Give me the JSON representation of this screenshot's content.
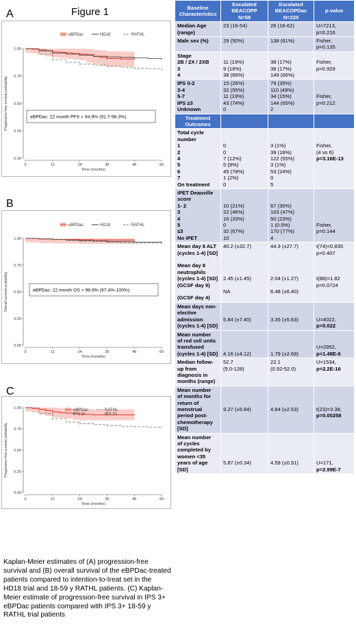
{
  "figure_title": "Figure 1",
  "panels": [
    {
      "letter": "A",
      "ylabel": "Progression-free survival probability",
      "xlabel": "Time (months)",
      "legend": [
        "eBPDac",
        "HD18",
        "RATHL"
      ],
      "annotation": "eBPDac: 22 month PFS = 94.9% (91.7-98.3%)",
      "yticks": [
        "1.00",
        "0.75",
        "0.50",
        "0.25",
        "0.00"
      ],
      "xticks": [
        "0",
        "12",
        "24",
        "36",
        "48",
        "60"
      ]
    },
    {
      "letter": "B",
      "ylabel": "Overall survival probability",
      "xlabel": "Time (months)",
      "legend": [
        "eBPDac",
        "HD18",
        "RATHL"
      ],
      "annotation": "eBPDac: 22 month OS = 98.9% (97.4%-100%)",
      "yticks": [
        "1.00",
        "0.75",
        "0.50",
        "0.25",
        "0.00"
      ],
      "xticks": [
        "0",
        "12",
        "24",
        "36",
        "48",
        "60"
      ]
    },
    {
      "letter": "C",
      "ylabel": "Progression-free survival probability",
      "xlabel": "Time (months)",
      "legend": [
        "eBPDac\nIPS 3+",
        "RATHL\nIPS 3+"
      ],
      "yticks": [
        "1.00",
        "0.75",
        "0.50",
        "0.25",
        "0.00"
      ],
      "xticks": [
        "0",
        "12",
        "24",
        "36",
        "48",
        "60"
      ]
    }
  ],
  "chart_data": [
    {
      "type": "line",
      "title": "",
      "xlabel": "Time (months)",
      "ylabel": "Progression-free survival probability",
      "xlim": [
        0,
        60
      ],
      "ylim": [
        0,
        1
      ],
      "series": [
        {
          "name": "eBPDac",
          "x": [
            0,
            3,
            6,
            9,
            12,
            15,
            18,
            21,
            24,
            27,
            30,
            33,
            36,
            42,
            48
          ],
          "y": [
            1.0,
            0.995,
            0.99,
            0.98,
            0.97,
            0.965,
            0.96,
            0.955,
            0.95,
            0.945,
            0.93,
            0.92,
            0.91,
            0.905,
            0.905
          ]
        },
        {
          "name": "HD18",
          "x": [
            0,
            6,
            12,
            18,
            24,
            30,
            36,
            42,
            48,
            54,
            60
          ],
          "y": [
            1.0,
            0.98,
            0.96,
            0.95,
            0.94,
            0.93,
            0.925,
            0.92,
            0.915,
            0.91,
            0.905
          ]
        },
        {
          "name": "RATHL",
          "x": [
            0,
            6,
            12,
            18,
            24,
            30,
            36,
            42,
            48,
            54,
            60
          ],
          "y": [
            1.0,
            0.95,
            0.9,
            0.875,
            0.86,
            0.85,
            0.84,
            0.83,
            0.82,
            0.815,
            0.81
          ]
        }
      ]
    },
    {
      "type": "line",
      "title": "",
      "xlabel": "Time (months)",
      "ylabel": "Overall survival probability",
      "xlim": [
        0,
        60
      ],
      "ylim": [
        0,
        1
      ],
      "series": [
        {
          "name": "eBPDac",
          "x": [
            0,
            6,
            12,
            18,
            24,
            30,
            36,
            42,
            48
          ],
          "y": [
            1.0,
            0.995,
            0.99,
            0.989,
            0.988,
            0.985,
            0.985,
            0.985,
            0.985
          ]
        },
        {
          "name": "HD18",
          "x": [
            0,
            6,
            12,
            18,
            24,
            30,
            36,
            42,
            48,
            54,
            60
          ],
          "y": [
            1.0,
            0.995,
            0.99,
            0.985,
            0.98,
            0.975,
            0.97,
            0.97,
            0.965,
            0.965,
            0.96
          ]
        },
        {
          "name": "RATHL",
          "x": [
            0,
            6,
            12,
            18,
            24,
            30,
            36,
            42,
            48,
            54,
            60
          ],
          "y": [
            1.0,
            0.995,
            0.99,
            0.98,
            0.975,
            0.97,
            0.965,
            0.96,
            0.955,
            0.955,
            0.955
          ]
        }
      ]
    },
    {
      "type": "line",
      "title": "",
      "xlabel": "Time (months)",
      "ylabel": "Progression-free survival probability",
      "xlim": [
        0,
        60
      ],
      "ylim": [
        0,
        1
      ],
      "series": [
        {
          "name": "eBPDac IPS 3+",
          "x": [
            0,
            3,
            6,
            9,
            12,
            15,
            18,
            21,
            24,
            30,
            36,
            42,
            48
          ],
          "y": [
            1.0,
            0.99,
            0.98,
            0.965,
            0.95,
            0.94,
            0.935,
            0.93,
            0.92,
            0.915,
            0.915,
            0.915,
            0.915
          ]
        },
        {
          "name": "RATHL IPS 3+",
          "x": [
            0,
            6,
            12,
            18,
            24,
            30,
            36,
            42,
            48,
            54,
            60
          ],
          "y": [
            1.0,
            0.93,
            0.87,
            0.83,
            0.81,
            0.8,
            0.79,
            0.78,
            0.775,
            0.77,
            0.765
          ]
        }
      ]
    }
  ],
  "table": {
    "header": [
      "Baseline\nCharacteristics",
      "Escalated\nBEACOPP\nN=58",
      "Escalated\nBEACOPDac\nN=225",
      "p-value"
    ],
    "rows": [
      {
        "s": "bl",
        "h": "Median Age\n(range)",
        "a": "23 (16-54)",
        "b": "26 (16-62)",
        "p": "U=7213,\np=0.216"
      },
      {
        "s": "bl",
        "h": "Male sex (%)",
        "a": "29 (50%)",
        "b": "138 (61%)",
        "p": "Fisher,\np=0.135"
      },
      {
        "s": "wh",
        "h": "Stage\n2B / 2X / 2XB\n3\n4",
        "a": "\n11 (19%)\n9 (16%)\n38 (66%)",
        "b": "\n38 (17%)\n38 (17%)\n149 (66%)",
        "p": "\nFisher,\np=0.929"
      },
      {
        "s": "bl",
        "h": "IPS   0-2\n         3-4\n         5-7\nIPS    ≥3\nUnknown",
        "a": "15 (26%)\n32 (55%)\n11 (19%)\n43 (74%)\n0",
        "b": "79 (35%)\n110 (49%)\n34 (15%)\n144 (65%)\n2",
        "p": "\n\nFisher,\np=0.212"
      },
      {
        "s": "sec",
        "h": "Treatment\nOutcomes",
        "a": "",
        "b": "",
        "p": ""
      },
      {
        "s": "wh",
        "h": "Total cycle\nnumber\n1\n2\n4\n5\n6\n7\nOn treatment",
        "a": "\n\n0\n0\n7 (12%)\n5 (9%)\n45 (78%)\n1 (2%)\n0",
        "b": "\n\n3 (1%)\n39 (18%)\n122 (55%)\n3 (1%)\n53 (24%)\n0\n5",
        "p": "\n\nFisher,\n(4 vs 6)\np=3.16E-13",
        "pb": "p=3.16E-13"
      },
      {
        "s": "bl",
        "h": "iPET Deauville\nscore\n1- 2\n3\n4\n5\n≤3\nNo iPET",
        "a": "\n\n10 (21%)\n22 (46%)\n16 (33%)\n0\n32 (67%)\n10",
        "b": "\n\n67 (30%)\n103 (47%)\n50 (23%)\n1 (0.5%)\n170 (77%)\n4",
        "p": "\n\n\n\n\nFisher,\np=0.144"
      },
      {
        "s": "wh",
        "h": "Mean day 8 ALT\n(cycles 1-4) [SD]\n\nMean day 8\nneutrophils\n(cycles 1-4) [SD]\n(GCSF day 9)\n\n(GCSF day 4)",
        "a": "40.2 (±32.7)\n\n\n\n\n2.45 (±1.45)\n\nNA",
        "b": "44.3 (±27.7)\n\n\n\n\n2.04 (±1.27)\n\n6.48 (±6.40)",
        "p": "t(74)=0.835\np=0.407\n\n\n\nt(88)=1.82\np=0.0724"
      },
      {
        "s": "bl",
        "h": "Mean days non-\nelective\nadmission\n(cycles 1-4) [SD]",
        "a": "\n\n5.84 (±7.40)",
        "b": "\n\n3.35 (±5.63)",
        "p": "\n\nU=4022,\np=0.022",
        "pb": "p=0.022"
      },
      {
        "s": "bl",
        "h": "Mean number\nof red cell units\ntransfused\n(cycles 1-4) [SD]",
        "a": "\n\n\n4.16 (±4.12)",
        "b": "\n\n\n1.79 (±2.69)",
        "p": "\n\nU=2952,\np=1.48E-6",
        "pb": "p=1.48E-6"
      },
      {
        "s": "wh",
        "h": "Median follow-\nup from\ndiagnosis  in\nmonths (range)",
        "a": "52.7\n(5.0-128)",
        "b": "22.1\n(0.92-52.0)",
        "p": "U=1534,\np=2.2E-16",
        "pb": "p=2.2E-16"
      },
      {
        "s": "bl",
        "h": "Mean number\nof months for\nreturn of\nmenstrual\nperiod post-\nchemotherapy\n[SD]",
        "a": "\n\n\n9.27 (±5.84)",
        "b": "\n\n\n4.64 (±2.53)",
        "p": "\n\n\nt(23)=3.38,\np=0.00258",
        "pb": "p=0.00258"
      },
      {
        "s": "wh",
        "h": "Mean number\nof cycles\ncompleted by\nwomen <35\nyears of age\n[SD]",
        "a": "\n\n\n\n5.87 (±0.34)",
        "b": "\n\n\n\n4.59 (±0.91)",
        "p": "\n\n\n\nU=171,\np=2.99E-7",
        "pb": "p=2.99E-7"
      }
    ]
  },
  "caption": "Kaplan-Meier estimates of (A) progression-free survival and (B) overall survival of the eBPDac-treated patients compared to intention-to-treat set in the HD18 trial and 18-59 y RATHL patients. (C) Kaplan-Meier estimate of progression-free survival in IPS 3+ eBPDac patients compared with IPS 3+ 18-59 y RATHL trial patients",
  "colors": {
    "ebpdac": "#e8453c",
    "band": "#f7b6b0",
    "hd18": "#333333",
    "rathl": "#777777",
    "header": "#4472c4",
    "row_dark": "#d0d5e8",
    "row_light": "#e9ebf5"
  }
}
